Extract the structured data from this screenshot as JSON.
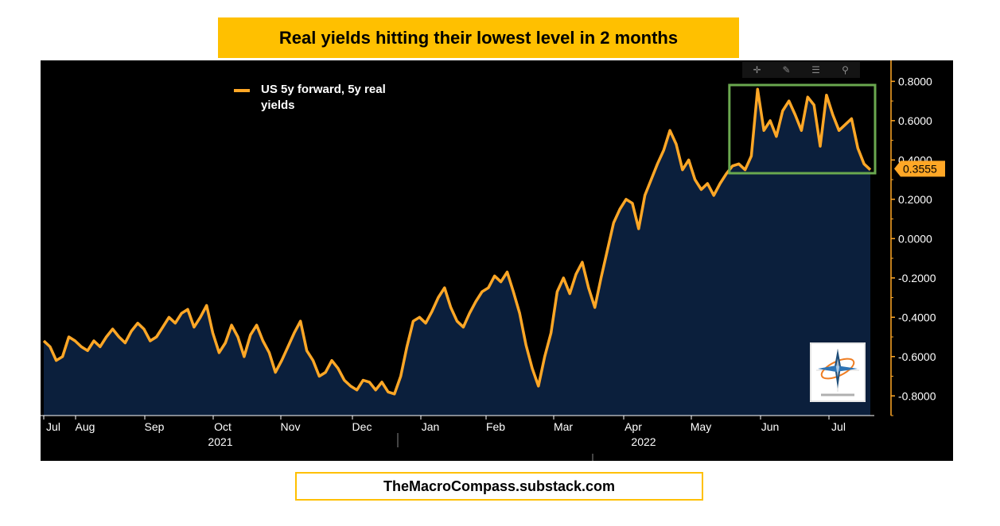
{
  "title": "Real yields hitting their lowest level in 2 months",
  "footer": "TheMacroCompass.substack.com",
  "legend": {
    "label": "US 5y forward, 5y real yields"
  },
  "last_value_label": "0.3555",
  "colors": {
    "line": "#ffa726",
    "area": "#0b1f3c",
    "highlight": "#6aa84f",
    "background": "#000000",
    "banner": "#ffc000"
  },
  "toolbar": {
    "icons": [
      "crosshair-icon",
      "pencil-icon",
      "list-icon",
      "zoom-icon"
    ]
  },
  "chart_data": {
    "type": "area",
    "title": "Real yields hitting their lowest level in 2 months",
    "series": [
      {
        "name": "US 5y forward, 5y real yields",
        "values": [
          -0.52,
          -0.55,
          -0.62,
          -0.6,
          -0.5,
          -0.52,
          -0.55,
          -0.57,
          -0.52,
          -0.55,
          -0.5,
          -0.46,
          -0.5,
          -0.53,
          -0.47,
          -0.43,
          -0.46,
          -0.52,
          -0.5,
          -0.45,
          -0.4,
          -0.43,
          -0.38,
          -0.36,
          -0.45,
          -0.4,
          -0.34,
          -0.48,
          -0.58,
          -0.53,
          -0.44,
          -0.5,
          -0.6,
          -0.49,
          -0.44,
          -0.52,
          -0.58,
          -0.68,
          -0.62,
          -0.55,
          -0.48,
          -0.42,
          -0.57,
          -0.62,
          -0.7,
          -0.68,
          -0.62,
          -0.66,
          -0.72,
          -0.75,
          -0.77,
          -0.72,
          -0.73,
          -0.77,
          -0.73,
          -0.78,
          -0.79,
          -0.7,
          -0.55,
          -0.42,
          -0.4,
          -0.43,
          -0.37,
          -0.3,
          -0.25,
          -0.35,
          -0.42,
          -0.45,
          -0.38,
          -0.32,
          -0.27,
          -0.25,
          -0.19,
          -0.22,
          -0.17,
          -0.27,
          -0.38,
          -0.54,
          -0.66,
          -0.75,
          -0.6,
          -0.48,
          -0.27,
          -0.2,
          -0.28,
          -0.18,
          -0.12,
          -0.25,
          -0.35,
          -0.2,
          -0.06,
          0.08,
          0.15,
          0.2,
          0.18,
          0.05,
          0.22,
          0.3,
          0.38,
          0.45,
          0.55,
          0.48,
          0.35,
          0.4,
          0.3,
          0.25,
          0.28,
          0.22,
          0.28,
          0.33,
          0.37,
          0.38,
          0.35,
          0.42,
          0.76,
          0.55,
          0.6,
          0.52,
          0.65,
          0.7,
          0.63,
          0.55,
          0.72,
          0.68,
          0.47,
          0.73,
          0.63,
          0.55,
          0.58,
          0.61,
          0.46,
          0.38,
          0.35
        ]
      }
    ],
    "x_axis": {
      "month_labels": [
        "Jul",
        "Aug",
        "Sep",
        "Oct",
        "Nov",
        "Dec",
        "Jan",
        "Feb",
        "Mar",
        "Apr",
        "May",
        "Jun",
        "Jul"
      ],
      "year_labels": [
        "2021",
        "2022"
      ]
    },
    "y_axis": {
      "ylim": [
        -0.9,
        0.85
      ],
      "ticks": [
        0.8,
        0.6,
        0.4,
        0.2,
        0.0,
        -0.2,
        -0.4,
        -0.6,
        -0.8
      ],
      "tick_labels": [
        "0.8000",
        "0.6000",
        "0.4000",
        "0.2000",
        "0.0000",
        "-0.2000",
        "-0.4000",
        "-0.6000",
        "-0.8000"
      ],
      "position": "right"
    },
    "annotations": [
      {
        "type": "highlight-box",
        "from_index": 110,
        "to_index": 132,
        "color": "#6aa84f"
      },
      {
        "type": "last-value-tag",
        "value": 0.3555,
        "text": "0.3555"
      }
    ],
    "legend_position": "top-left"
  }
}
